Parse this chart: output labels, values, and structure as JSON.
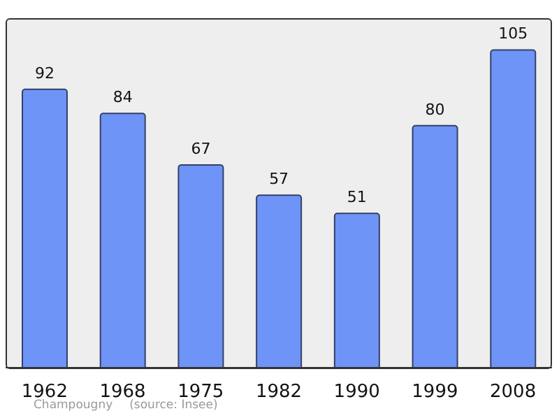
{
  "chart_data": {
    "type": "bar",
    "categories": [
      "1962",
      "1968",
      "1975",
      "1982",
      "1990",
      "1999",
      "2008"
    ],
    "values": [
      92,
      84,
      67,
      57,
      51,
      80,
      105
    ],
    "color": "#6f94f7",
    "data_labels": true,
    "annotations": [
      "Champougny",
      "(source: Insee)"
    ]
  }
}
